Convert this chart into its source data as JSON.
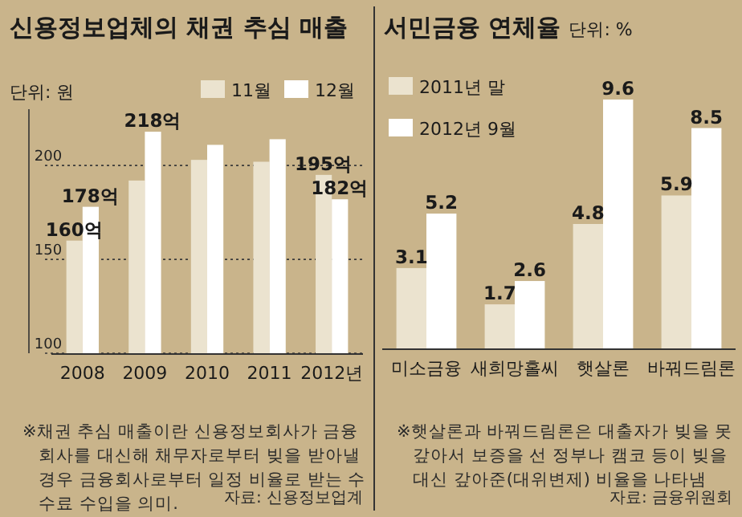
{
  "chart_data": [
    {
      "type": "bar",
      "title": "신용정보업체의 채권 추심 매출",
      "ylabel": "단위: 원",
      "categories": [
        "2008",
        "2009",
        "2010",
        "2011",
        "2012년"
      ],
      "series": [
        {
          "name": "11월",
          "color": "#ebe3cf",
          "values": [
            160,
            192,
            203,
            202,
            195
          ],
          "value_labels": [
            "160억",
            null,
            null,
            null,
            "195억"
          ]
        },
        {
          "name": "12월",
          "color": "#ffffff",
          "values": [
            178,
            218,
            211,
            214,
            182
          ],
          "value_labels": [
            "178억",
            "218억",
            null,
            null,
            "182억"
          ]
        }
      ],
      "ylim": [
        100,
        230
      ],
      "yticks": [
        100,
        150,
        200
      ],
      "grid": "y",
      "legend": "top right",
      "annotations": [
        "※채권 추심 매출이란 신용정보회사가 금융 회사를 대신해 채무자로부터 빚을 받아낼 경우 금융회사로부터 일정 비율로 받는 수수료 수입을 의미.",
        "자료: 신용정보업계"
      ]
    },
    {
      "type": "bar",
      "title": "서민금융 연체율",
      "subtitle": "단위: %",
      "categories": [
        "미소금융",
        "새희망홀씨",
        "햇살론",
        "바꿔드림론"
      ],
      "series": [
        {
          "name": "2011년 말",
          "color": "#ebe3cf",
          "values": [
            3.1,
            1.7,
            4.8,
            5.9
          ]
        },
        {
          "name": "2012년 9월",
          "color": "#ffffff",
          "values": [
            5.2,
            2.6,
            9.6,
            8.5
          ]
        }
      ],
      "data_labels": true,
      "legend": "top left",
      "annotations": [
        "※햇살론과 바꿔드림론은 대출자가 빚을 못 갚아서 보증을 선 정부나 캠코 등이 빚을 대신 갚아준(대위변제) 비율을 나타냄",
        "자료: 금융위원회"
      ]
    }
  ]
}
